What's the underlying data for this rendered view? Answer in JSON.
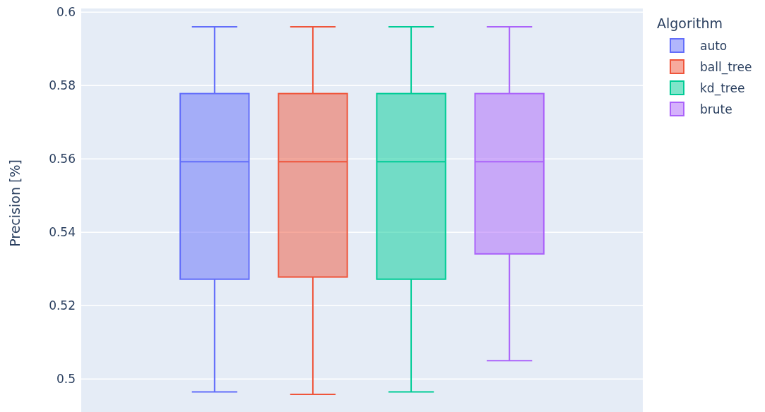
{
  "chart_data": {
    "type": "box",
    "ylabel": "Precision [%]",
    "legend_title": "Algorithm",
    "legend": "right",
    "grid": "y",
    "categories": [
      null
    ],
    "ylim": [
      0.491,
      0.601
    ],
    "yticks": [
      0.5,
      0.52,
      0.54,
      0.56,
      0.58,
      0.6
    ],
    "series": [
      {
        "name": "auto",
        "color": "#636efa",
        "boxes": [
          {
            "low": 0.4965,
            "q1": 0.5272,
            "median": 0.5592,
            "q3": 0.5778,
            "high": 0.596
          }
        ]
      },
      {
        "name": "ball_tree",
        "color": "#ef553b",
        "boxes": [
          {
            "low": 0.4958,
            "q1": 0.5278,
            "median": 0.5592,
            "q3": 0.5778,
            "high": 0.596
          }
        ]
      },
      {
        "name": "kd_tree",
        "color": "#00cc96",
        "boxes": [
          {
            "low": 0.4965,
            "q1": 0.5272,
            "median": 0.5592,
            "q3": 0.5778,
            "high": 0.596
          }
        ]
      },
      {
        "name": "brute",
        "color": "#ab63fa",
        "boxes": [
          {
            "low": 0.505,
            "q1": 0.5341,
            "median": 0.5592,
            "q3": 0.5778,
            "high": 0.596
          }
        ]
      }
    ]
  }
}
